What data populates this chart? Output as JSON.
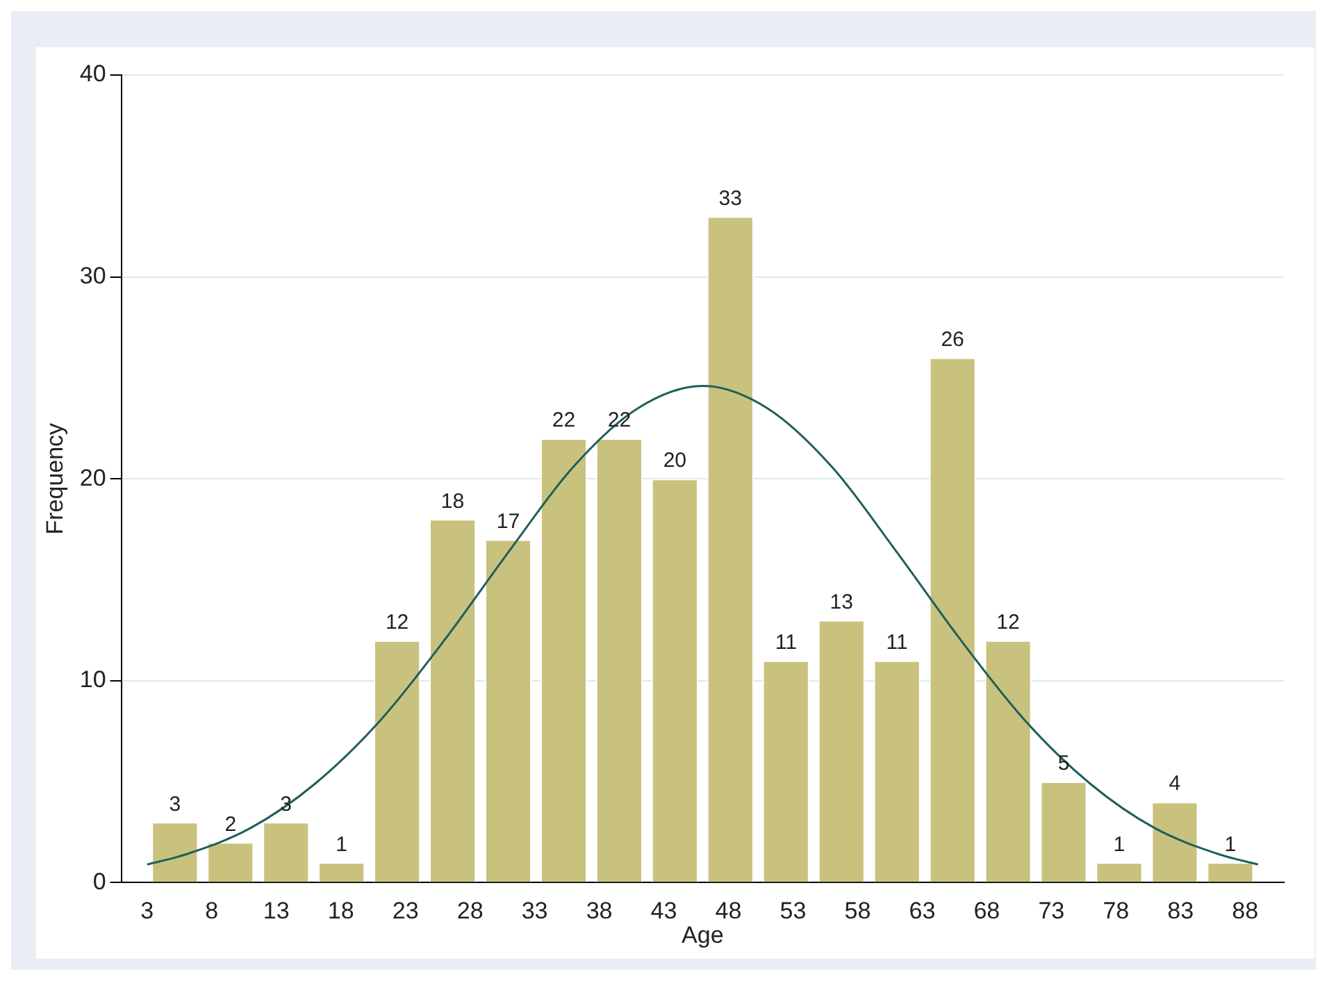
{
  "chart_data": {
    "type": "histogram",
    "xlabel": "Age",
    "ylabel": "Frequency",
    "bins": [
      3,
      7.3,
      11.6,
      15.9,
      20.2,
      24.5,
      28.8,
      33.1,
      37.4,
      41.7,
      46,
      50.3,
      54.6,
      58.9,
      63.2,
      67.5,
      71.8,
      76.1,
      80.4,
      84.7,
      89
    ],
    "values": [
      3,
      2,
      3,
      1,
      12,
      18,
      17,
      22,
      22,
      20,
      33,
      11,
      13,
      11,
      26,
      12,
      5,
      1,
      4,
      1
    ],
    "color": "#c9c27f",
    "value_labels": [
      "3",
      "2",
      "3",
      "1",
      "12",
      "18",
      "17",
      "22",
      "22",
      "20",
      "33",
      "11",
      "13",
      "11",
      "26",
      "12",
      "5",
      "1",
      "4",
      "1"
    ],
    "series": [
      {
        "type": "line",
        "color": "#1f5f5a",
        "x": [
          3,
          6,
          11,
          16,
          21,
          26,
          31,
          36,
          41,
          46,
          51,
          56,
          61,
          66,
          71,
          76,
          81,
          86,
          89
        ],
        "values": [
          0.9,
          1.4,
          2.7,
          4.9,
          8.0,
          12.0,
          16.4,
          20.6,
          23.5,
          24.6,
          23.5,
          20.6,
          16.4,
          12.0,
          8.0,
          4.9,
          2.7,
          1.4,
          0.9
        ]
      }
    ],
    "xlim": [
      1,
      91
    ],
    "xticks": [
      3,
      8,
      13,
      18,
      23,
      28,
      33,
      38,
      43,
      48,
      53,
      58,
      63,
      68,
      73,
      78,
      83,
      88
    ],
    "ylim": [
      0,
      40
    ],
    "yticks": [
      0,
      10,
      20,
      30,
      40
    ],
    "grid": "y",
    "legend": false
  }
}
